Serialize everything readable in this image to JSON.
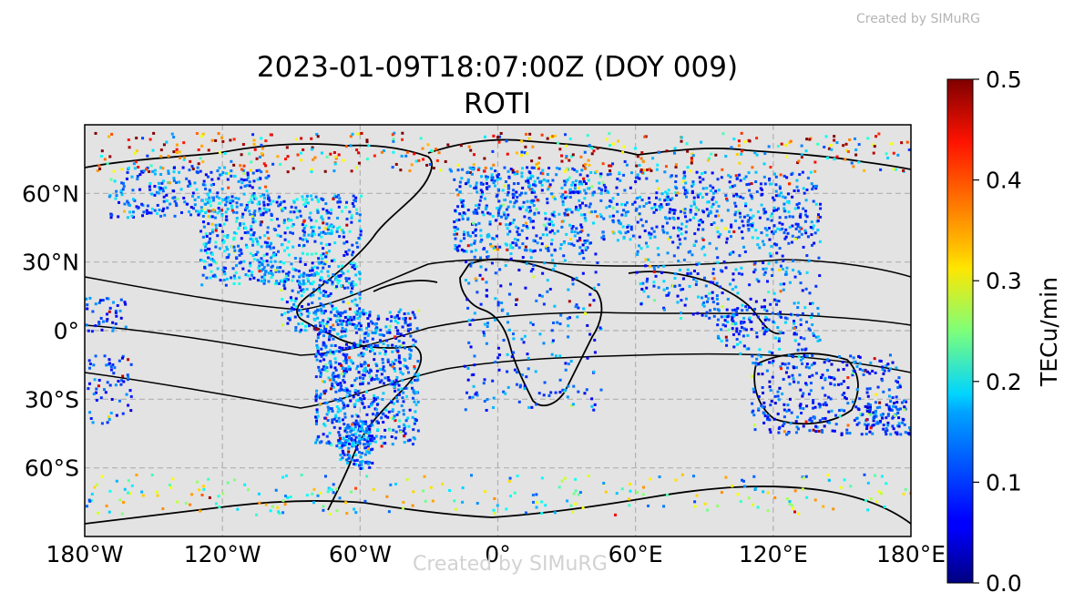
{
  "watermark": "Created by SIMuRG",
  "title_line1": "2023-01-09T18:07:00Z (DOY 009)",
  "title_line2": "ROTI",
  "map": {
    "projection": "equirectangular",
    "lon_range": [
      -180,
      180
    ],
    "lat_range": [
      -90,
      90
    ],
    "x_ticks": [
      {
        "value": -180,
        "label": "180°W"
      },
      {
        "value": -120,
        "label": "120°W"
      },
      {
        "value": -60,
        "label": "60°W"
      },
      {
        "value": 0,
        "label": "0°"
      },
      {
        "value": 60,
        "label": "60°E"
      },
      {
        "value": 120,
        "label": "120°E"
      },
      {
        "value": 180,
        "label": "180°E"
      }
    ],
    "y_ticks": [
      {
        "value": 60,
        "label": "60°N"
      },
      {
        "value": 30,
        "label": "30°N"
      },
      {
        "value": 0,
        "label": "0°"
      },
      {
        "value": -30,
        "label": "30°S"
      },
      {
        "value": -60,
        "label": "60°S"
      }
    ],
    "grid": true,
    "night_shading_color": "#e3e3e3",
    "data_density": "dense"
  },
  "colorbar": {
    "label": "TECu/min",
    "min": 0.0,
    "max": 0.5,
    "ticks": [
      "0.0",
      "0.1",
      "0.2",
      "0.3",
      "0.4",
      "0.5"
    ],
    "colormap": "jet"
  }
}
